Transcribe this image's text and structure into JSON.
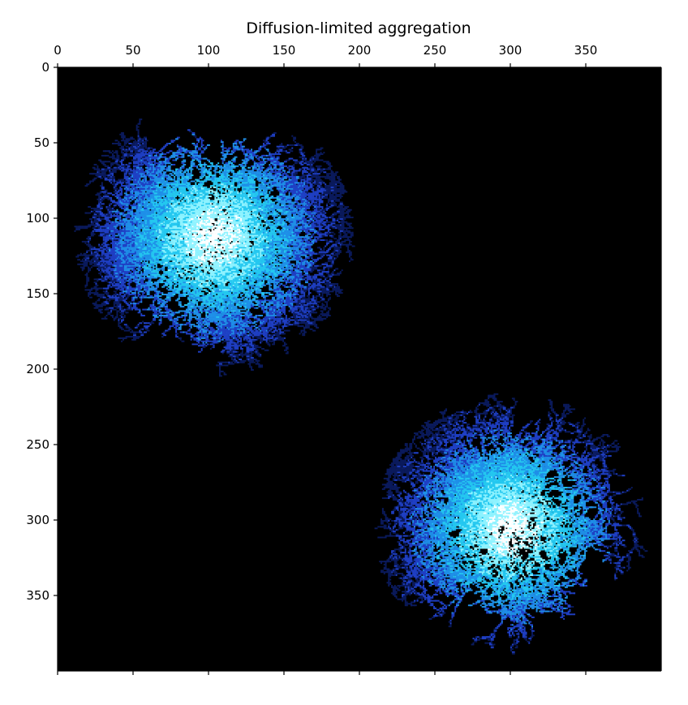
{
  "chart_data": {
    "type": "heatmap",
    "title": "Diffusion-limited aggregation",
    "xlabel": "",
    "ylabel": "",
    "grid": false,
    "x_axis_position": "top",
    "y_axis_inverted": true,
    "x_range": [
      0,
      400
    ],
    "y_range": [
      0,
      400
    ],
    "x_ticks": [
      0,
      50,
      100,
      150,
      200,
      250,
      300,
      350
    ],
    "y_ticks": [
      0,
      50,
      100,
      150,
      200,
      250,
      300,
      350
    ],
    "background_color": "#000000",
    "colormap": [
      "#0a1a5c",
      "#1f3fc4",
      "#1f8fe8",
      "#24c8f0",
      "#8ff3ff",
      "#ffffff"
    ],
    "clusters": [
      {
        "center_x": 103,
        "center_y": 112,
        "radius": 92,
        "arms": 15,
        "seed": 7
      },
      {
        "center_x": 300,
        "center_y": 305,
        "radius": 90,
        "arms": 17,
        "seed": 19
      }
    ]
  }
}
